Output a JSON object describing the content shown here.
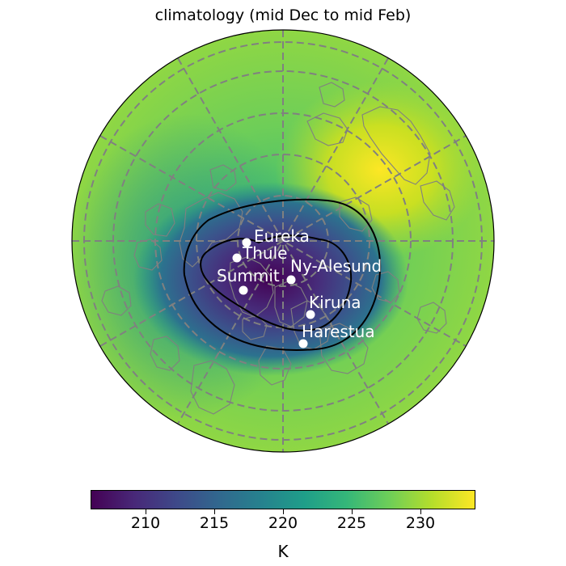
{
  "title": "climatology (mid Dec to mid Feb)",
  "colorbar": {
    "unit": "K",
    "min": 206,
    "max": 234,
    "ticks": [
      210,
      215,
      220,
      225,
      230
    ],
    "colormap": [
      "#440154",
      "#482878",
      "#3e4989",
      "#31688e",
      "#26828e",
      "#1f9e89",
      "#35b779",
      "#6ece58",
      "#b5de2b",
      "#fde725"
    ]
  },
  "colors": {
    "gridline": "#808080",
    "coastline": "#808080",
    "contour": "#000000",
    "station_marker": "#ffffff"
  },
  "stations": [
    {
      "name": "Eureka"
    },
    {
      "name": "Thule"
    },
    {
      "name": "Ny-Alesund"
    },
    {
      "name": "Summit"
    },
    {
      "name": "Kiruna"
    },
    {
      "name": "Harestua"
    }
  ]
}
